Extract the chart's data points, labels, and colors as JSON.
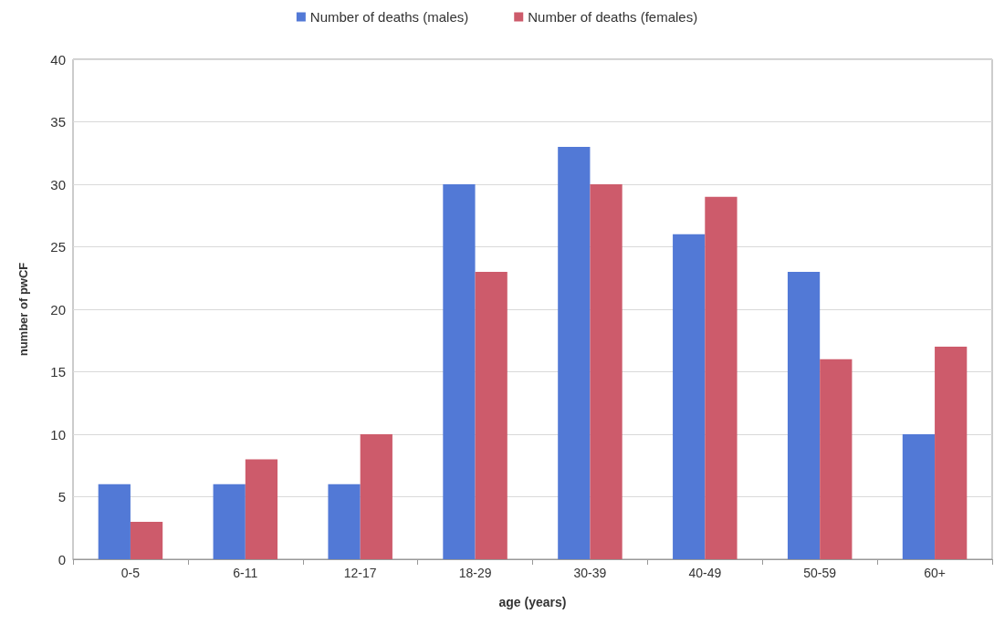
{
  "chart_data": {
    "type": "bar",
    "xlabel": "age (years)",
    "ylabel": "number of pwCF",
    "categories": [
      "0-5",
      "6-11",
      "12-17",
      "18-29",
      "30-39",
      "40-49",
      "50-59",
      "60+"
    ],
    "series": [
      {
        "name": "Number of deaths (males)",
        "color": "#5279d6",
        "values": [
          6,
          6,
          6,
          30,
          33,
          26,
          23,
          10
        ]
      },
      {
        "name": "Number of deaths (females)",
        "color": "#cd5b6b",
        "values": [
          3,
          8,
          10,
          23,
          30,
          29,
          16,
          17
        ]
      }
    ],
    "ylim": [
      0,
      40
    ],
    "yticks": [
      0,
      5,
      10,
      15,
      20,
      25,
      30,
      35,
      40
    ],
    "grid": "y",
    "legend": "top"
  }
}
